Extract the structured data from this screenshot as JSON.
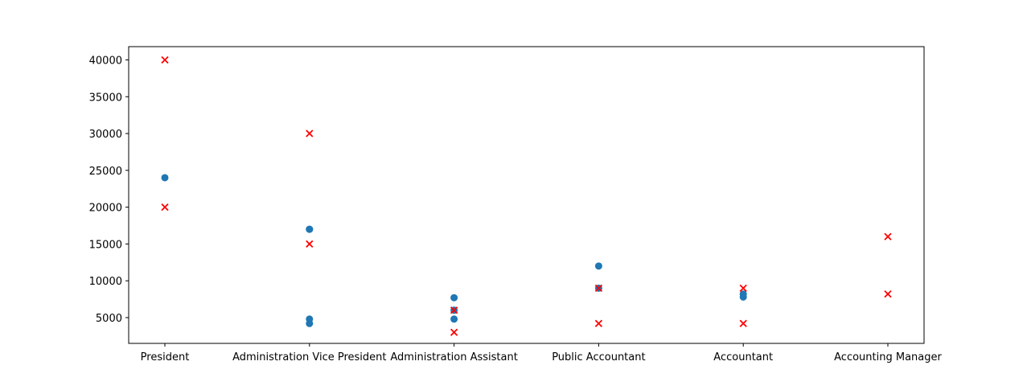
{
  "chart_data": {
    "type": "scatter",
    "title": "",
    "xlabel": "",
    "ylabel": "",
    "categories": [
      "President",
      "Administration Vice President",
      "Administration Assistant",
      "Public Accountant",
      "Accountant",
      "Accounting Manager"
    ],
    "yticks": [
      5000,
      10000,
      15000,
      20000,
      25000,
      30000,
      35000,
      40000
    ],
    "ylim": [
      1500,
      41800
    ],
    "grid": false,
    "legend": "none",
    "series": [
      {
        "marker": "circle",
        "color": "#1f77b4",
        "points": [
          {
            "category": "President",
            "y": 24000
          },
          {
            "category": "Administration Vice President",
            "y": 17000
          },
          {
            "category": "Administration Vice President",
            "y": 17000
          },
          {
            "category": "Administration Vice President",
            "y": 4800
          },
          {
            "category": "Administration Vice President",
            "y": 4200
          },
          {
            "category": "Administration Assistant",
            "y": 7700
          },
          {
            "category": "Administration Assistant",
            "y": 6000
          },
          {
            "category": "Administration Assistant",
            "y": 4800
          },
          {
            "category": "Public Accountant",
            "y": 12000
          },
          {
            "category": "Public Accountant",
            "y": 9000
          },
          {
            "category": "Accountant",
            "y": 8200
          },
          {
            "category": "Accountant",
            "y": 7800
          }
        ]
      },
      {
        "marker": "x",
        "color": "#ff0000",
        "points": [
          {
            "category": "President",
            "y": 40000
          },
          {
            "category": "President",
            "y": 20000
          },
          {
            "category": "Administration Vice President",
            "y": 30000
          },
          {
            "category": "Administration Vice President",
            "y": 15000
          },
          {
            "category": "Administration Assistant",
            "y": 6000
          },
          {
            "category": "Administration Assistant",
            "y": 3000
          },
          {
            "category": "Public Accountant",
            "y": 9000
          },
          {
            "category": "Public Accountant",
            "y": 4200
          },
          {
            "category": "Accountant",
            "y": 9000
          },
          {
            "category": "Accountant",
            "y": 4200
          },
          {
            "category": "Accounting Manager",
            "y": 16000
          },
          {
            "category": "Accounting Manager",
            "y": 8200
          }
        ]
      }
    ]
  }
}
